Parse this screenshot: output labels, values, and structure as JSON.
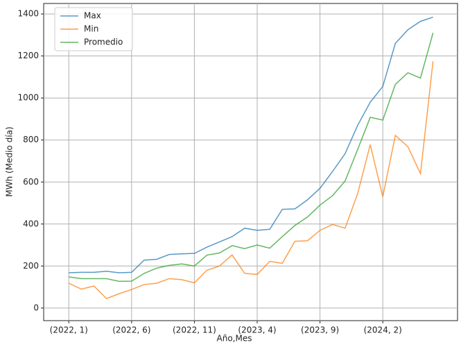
{
  "chart_data": {
    "type": "line",
    "xlabel": "Año,Mes",
    "ylabel": "MWh (Medio día)",
    "categories": [
      "(2022, 1)",
      null,
      null,
      null,
      null,
      "(2022, 6)",
      null,
      null,
      null,
      null,
      "(2022, 11)",
      null,
      null,
      null,
      null,
      "(2023, 4)",
      null,
      null,
      null,
      null,
      "(2023, 9)",
      null,
      null,
      null,
      null,
      "(2024, 2)",
      null,
      null,
      null,
      null
    ],
    "series": [
      {
        "name": "Max",
        "color": "#1f77b4",
        "values": [
          168,
          170,
          170,
          175,
          168,
          170,
          228,
          232,
          255,
          258,
          260,
          290,
          315,
          340,
          380,
          370,
          375,
          470,
          472,
          515,
          570,
          650,
          735,
          870,
          980,
          1055,
          1260,
          1325,
          1365,
          1385
        ]
      },
      {
        "name": "Min",
        "color": "#ff7f0e",
        "values": [
          118,
          90,
          105,
          45,
          68,
          88,
          112,
          118,
          140,
          135,
          120,
          180,
          200,
          253,
          165,
          160,
          222,
          213,
          318,
          320,
          370,
          398,
          380,
          545,
          778,
          530,
          822,
          768,
          640,
          1175
        ]
      },
      {
        "name": "Promedio",
        "color": "#2ca02c",
        "values": [
          148,
          140,
          140,
          140,
          127,
          128,
          165,
          190,
          203,
          210,
          200,
          252,
          262,
          297,
          283,
          300,
          285,
          340,
          393,
          433,
          490,
          535,
          605,
          755,
          908,
          895,
          1065,
          1120,
          1095,
          1310
        ]
      }
    ],
    "ylim": [
      -60,
      1450
    ],
    "yticks": [
      0,
      200,
      400,
      600,
      800,
      1000,
      1200,
      1400
    ],
    "grid": true,
    "legend": "upper left"
  }
}
